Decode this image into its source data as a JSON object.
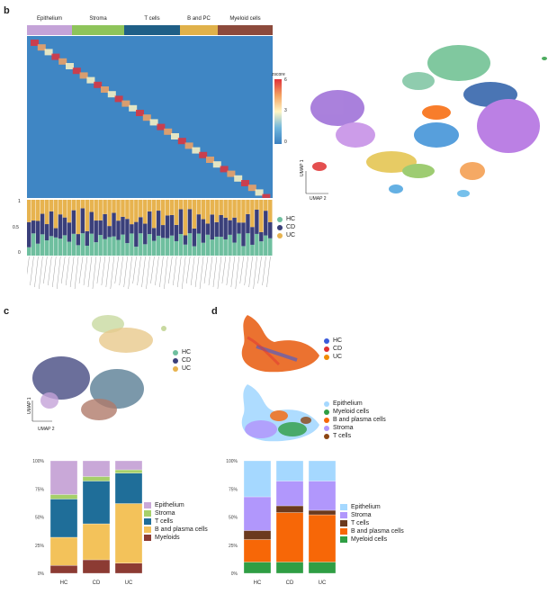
{
  "panels": {
    "b": "b",
    "c": "c",
    "d": "d"
  },
  "heatmap": {
    "groups": [
      {
        "label": "Epithelium",
        "color": "#c4a3d8"
      },
      {
        "label": "Stroma",
        "color": "#8ec45a"
      },
      {
        "label": "T cells",
        "color": "#1f5f87"
      },
      {
        "label": "B and PC",
        "color": "#e0b14a"
      },
      {
        "label": "Myeloid cells",
        "color": "#8c4a3c"
      }
    ],
    "colorbar": {
      "title": "zscore",
      "ticks": [
        "6",
        "3",
        "0"
      ]
    }
  },
  "composition_b": {
    "yticks": [
      "1",
      "0.5",
      "0"
    ],
    "legend": [
      {
        "label": "HC",
        "color": "#6fbf9f"
      },
      {
        "label": "CD",
        "color": "#3a3f7a"
      },
      {
        "label": "UC",
        "color": "#e7b34f"
      }
    ]
  },
  "umap_b": {
    "axis_y": "UMAP 1",
    "axis_x": "UMAP 2"
  },
  "umap_c": {
    "axis_y": "UMAP 1",
    "axis_x": "UMAP 2",
    "legend": [
      {
        "label": "HC",
        "color": "#6fbf9f"
      },
      {
        "label": "CD",
        "color": "#3a3f7a"
      },
      {
        "label": "UC",
        "color": "#e7b34f"
      }
    ]
  },
  "umap_d": {
    "legend_condition": [
      {
        "label": "HC",
        "color": "#3b5bdb"
      },
      {
        "label": "CD",
        "color": "#e03131"
      },
      {
        "label": "UC",
        "color": "#f08c00"
      }
    ],
    "legend_type": [
      {
        "label": "Epithelium",
        "color": "#a5d8ff"
      },
      {
        "label": "Myeloid cells",
        "color": "#2f9e44"
      },
      {
        "label": "B and plasma cells",
        "color": "#f76707"
      },
      {
        "label": "Stroma",
        "color": "#b197fc"
      },
      {
        "label": "T cells",
        "color": "#8b4513"
      }
    ]
  },
  "chart_data": [
    {
      "type": "bar",
      "title": "",
      "stacked": true,
      "categories": [
        "HC",
        "CD",
        "UC"
      ],
      "ylabel": "",
      "yticks": [
        "100%",
        "75%",
        "50%",
        "25%",
        "0%"
      ],
      "ylim": [
        0,
        100
      ],
      "series": [
        {
          "name": "Epithelium",
          "color": "#c9a8d8",
          "values": [
            30,
            14,
            8
          ]
        },
        {
          "name": "Stroma",
          "color": "#a6d06a",
          "values": [
            4,
            4,
            3
          ]
        },
        {
          "name": "T cells",
          "color": "#1f6e99",
          "values": [
            34,
            38,
            27
          ]
        },
        {
          "name": "B and plasma cells",
          "color": "#f3c25a",
          "values": [
            25,
            32,
            53
          ]
        },
        {
          "name": "Myeloids",
          "color": "#8c3b33",
          "values": [
            7,
            12,
            9
          ]
        }
      ]
    },
    {
      "type": "bar",
      "title": "",
      "stacked": true,
      "categories": [
        "HC",
        "CD",
        "UC"
      ],
      "ylabel": "",
      "yticks": [
        "100%",
        "75%",
        "50%",
        "25%",
        "0%"
      ],
      "ylim": [
        0,
        100
      ],
      "series": [
        {
          "name": "Epithelium",
          "color": "#a5d8ff",
          "values": [
            32,
            18,
            18
          ]
        },
        {
          "name": "Stroma",
          "color": "#b197fc",
          "values": [
            30,
            22,
            26
          ]
        },
        {
          "name": "T cells",
          "color": "#6b3a1e",
          "values": [
            8,
            6,
            4
          ]
        },
        {
          "name": "B and plasma cells",
          "color": "#f76707",
          "values": [
            20,
            44,
            42
          ]
        },
        {
          "name": "Myeloid cells",
          "color": "#2f9e44",
          "values": [
            10,
            10,
            10
          ]
        }
      ]
    }
  ]
}
